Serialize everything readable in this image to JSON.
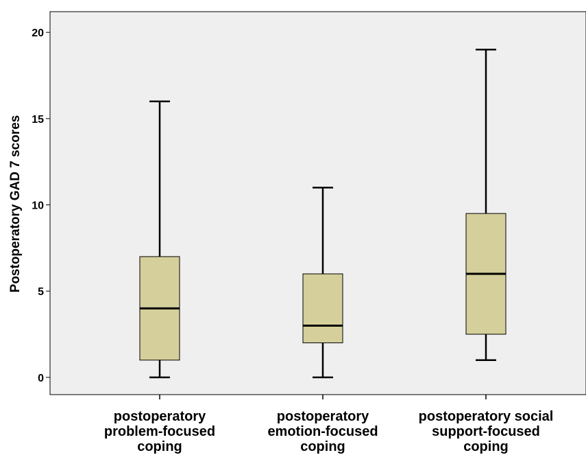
{
  "chart_data": {
    "type": "boxplot",
    "ylabel": "Postoperatory GAD 7 scores",
    "ylim": [
      -1,
      21.2
    ],
    "yticks": [
      0,
      5,
      10,
      15,
      20
    ],
    "grid": false,
    "colors": {
      "plot_background": "#efefef",
      "box_fill": "#d5cf9b",
      "stroke": "#000000"
    },
    "categories": [
      [
        "postoperatory",
        "problem-focused",
        "coping"
      ],
      [
        "postoperatory",
        "emotion-focused",
        "coping"
      ],
      [
        "postoperatory social",
        "support-focused",
        "coping"
      ]
    ],
    "boxes": [
      {
        "min": 0,
        "q1": 1,
        "median": 4,
        "q3": 7,
        "max": 16
      },
      {
        "min": 0,
        "q1": 2,
        "median": 3,
        "q3": 6,
        "max": 11
      },
      {
        "min": 1,
        "q1": 2.5,
        "median": 6,
        "q3": 9.5,
        "max": 19
      }
    ]
  }
}
